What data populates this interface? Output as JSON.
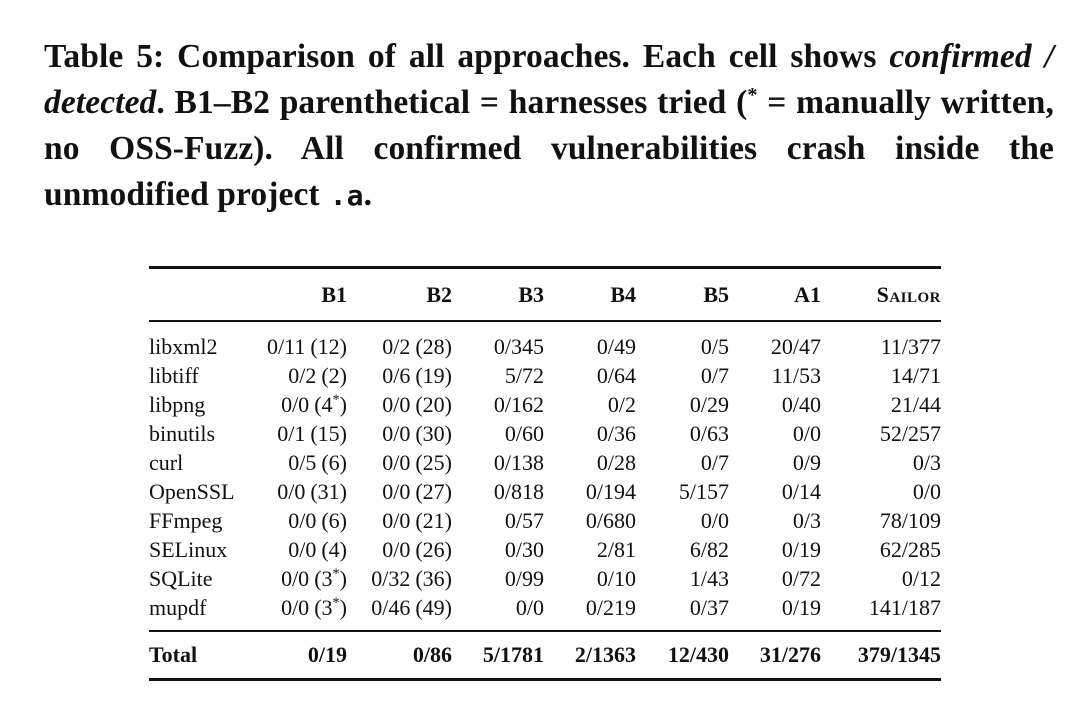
{
  "caption": {
    "label": "Table 5:",
    "part1": " Comparison of all approaches. Each cell shows ",
    "italic1": "confirmed",
    "slash": " / ",
    "italic2": "detected",
    "part2": ". B1–B2 parenthetical = harnesses tried (",
    "asterisk": "*",
    "part3": " = manually written, no OSS-Fuzz). All confirmed vulnerabilities crash inside the unmodified project",
    "mono": ".a",
    "end": "."
  },
  "table": {
    "headers": [
      "",
      "B1",
      "B2",
      "B3",
      "B4",
      "B5",
      "A1",
      "Sailor"
    ],
    "rows": [
      {
        "name": "libxml2",
        "b1": {
          "value": "0/11",
          "harnesses": "(12)",
          "manual": ""
        },
        "b2": {
          "value": "0/2",
          "harnesses": "(28)",
          "manual": ""
        },
        "b3": "0/345",
        "b4": "0/49",
        "b5": "0/5",
        "a1": "20/47",
        "sailor": "11/377"
      },
      {
        "name": "libtiff",
        "b1": {
          "value": "0/2",
          "harnesses": "(2)",
          "manual": ""
        },
        "b2": {
          "value": "0/6",
          "harnesses": "(19)",
          "manual": ""
        },
        "b3": "5/72",
        "b4": "0/64",
        "b5": "0/7",
        "a1": "11/53",
        "sailor": "14/71"
      },
      {
        "name": "libpng",
        "b1": {
          "value": "0/0",
          "harnesses": "(4",
          "manual": "*"
        },
        "b2": {
          "value": "0/0",
          "harnesses": "(20)",
          "manual": ""
        },
        "b3": "0/162",
        "b4": "0/2",
        "b5": "0/29",
        "a1": "0/40",
        "sailor": "21/44"
      },
      {
        "name": "binutils",
        "b1": {
          "value": "0/1",
          "harnesses": "(15)",
          "manual": ""
        },
        "b2": {
          "value": "0/0",
          "harnesses": "(30)",
          "manual": ""
        },
        "b3": "0/60",
        "b4": "0/36",
        "b5": "0/63",
        "a1": "0/0",
        "sailor": "52/257"
      },
      {
        "name": "curl",
        "b1": {
          "value": "0/5",
          "harnesses": "(6)",
          "manual": ""
        },
        "b2": {
          "value": "0/0",
          "harnesses": "(25)",
          "manual": ""
        },
        "b3": "0/138",
        "b4": "0/28",
        "b5": "0/7",
        "a1": "0/9",
        "sailor": "0/3"
      },
      {
        "name": "OpenSSL",
        "b1": {
          "value": "0/0",
          "harnesses": "(31)",
          "manual": ""
        },
        "b2": {
          "value": "0/0",
          "harnesses": "(27)",
          "manual": ""
        },
        "b3": "0/818",
        "b4": "0/194",
        "b5": "5/157",
        "a1": "0/14",
        "sailor": "0/0"
      },
      {
        "name": "FFmpeg",
        "b1": {
          "value": "0/0",
          "harnesses": "(6)",
          "manual": ""
        },
        "b2": {
          "value": "0/0",
          "harnesses": "(21)",
          "manual": ""
        },
        "b3": "0/57",
        "b4": "0/680",
        "b5": "0/0",
        "a1": "0/3",
        "sailor": "78/109"
      },
      {
        "name": "SELinux",
        "b1": {
          "value": "0/0",
          "harnesses": "(4)",
          "manual": ""
        },
        "b2": {
          "value": "0/0",
          "harnesses": "(26)",
          "manual": ""
        },
        "b3": "0/30",
        "b4": "2/81",
        "b5": "6/82",
        "a1": "0/19",
        "sailor": "62/285"
      },
      {
        "name": "SQLite",
        "b1": {
          "value": "0/0",
          "harnesses": "(3",
          "manual": "*"
        },
        "b2": {
          "value": "0/32",
          "harnesses": "(36)",
          "manual": ""
        },
        "b3": "0/99",
        "b4": "0/10",
        "b5": "1/43",
        "a1": "0/72",
        "sailor": "0/12"
      },
      {
        "name": "mupdf",
        "b1": {
          "value": "0/0",
          "harnesses": "(3",
          "manual": "*"
        },
        "b2": {
          "value": "0/46",
          "harnesses": "(49)",
          "manual": ""
        },
        "b3": "0/0",
        "b4": "0/219",
        "b5": "0/37",
        "a1": "0/19",
        "sailor": "141/187"
      }
    ],
    "total": {
      "name": "Total",
      "b1": "0/19",
      "b2": "0/86",
      "b3": "5/1781",
      "b4": "2/1363",
      "b5": "12/430",
      "a1": "31/276",
      "sailor": "379/1345"
    }
  }
}
